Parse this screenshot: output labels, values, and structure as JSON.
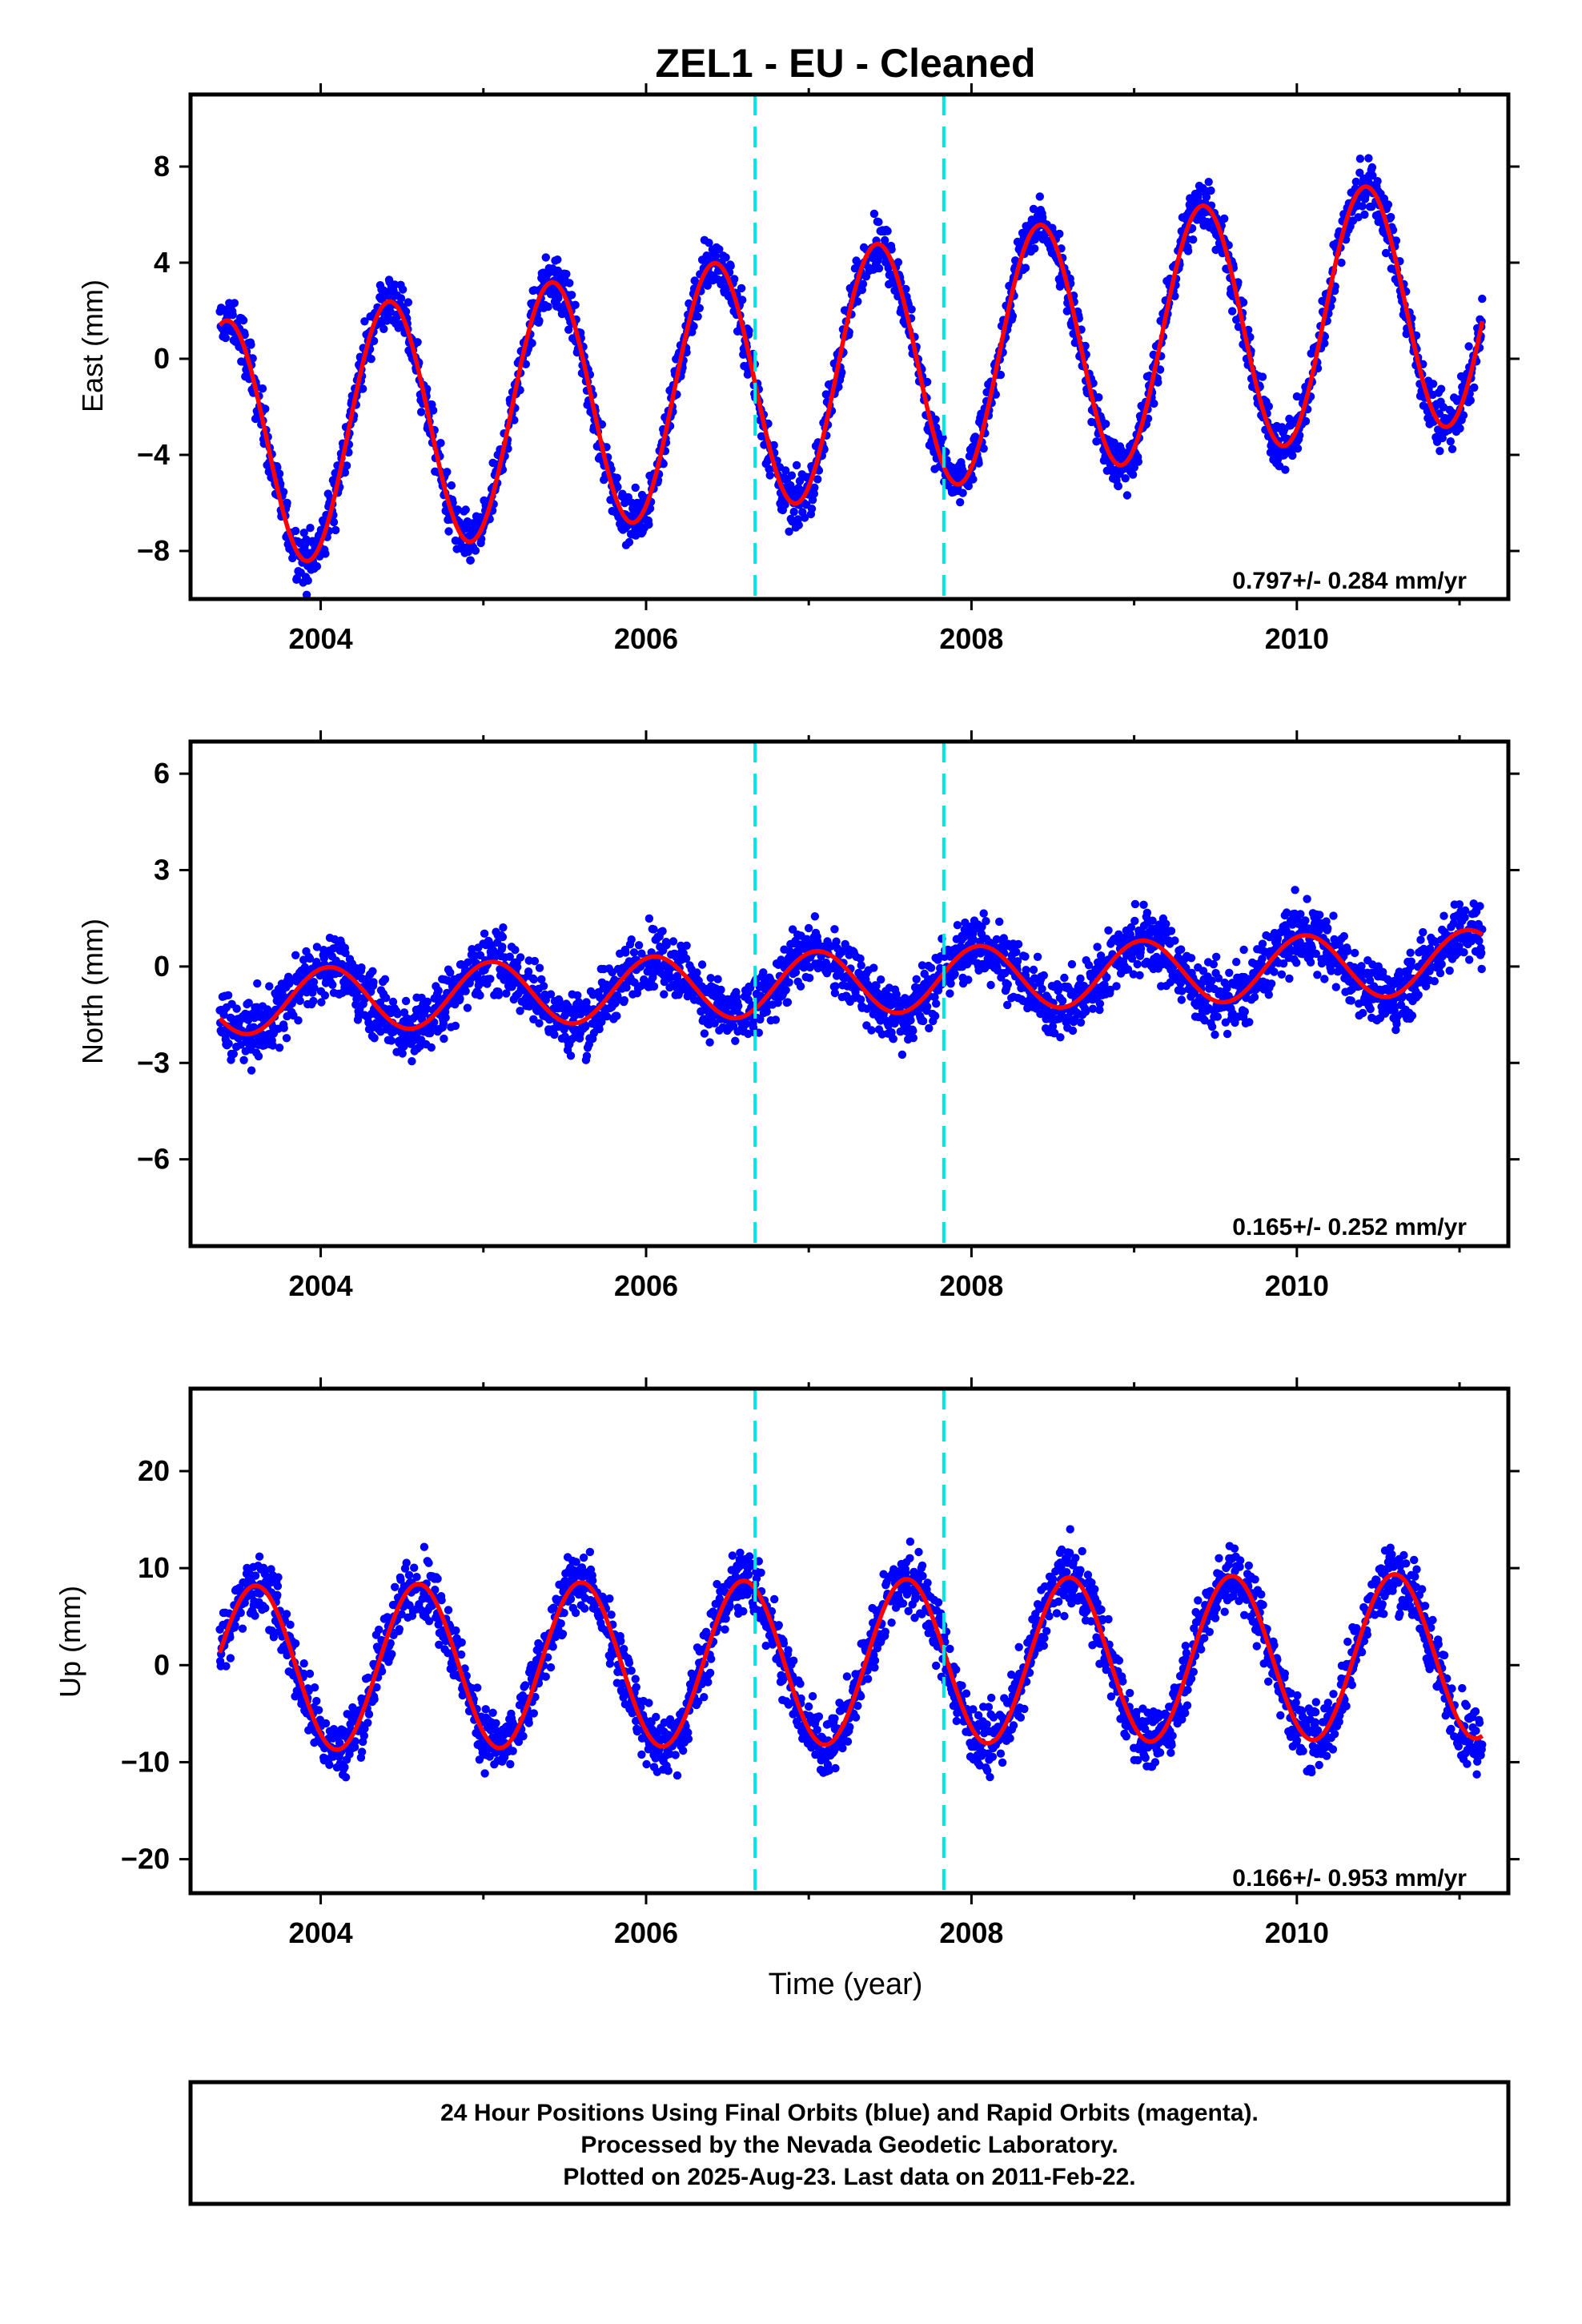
{
  "title": "ZEL1  - EU - Cleaned",
  "chart_data": [
    {
      "type": "scatter",
      "ylabel": "East (mm)",
      "xlim": [
        2003.2,
        2011.3
      ],
      "ylim": [
        -10.0,
        11.0
      ],
      "x_ticks": [
        "2004",
        "2006",
        "2008",
        "2010"
      ],
      "y_ticks": [
        -8,
        -4,
        0,
        4,
        8
      ],
      "y_tick_labels": [
        "−8",
        "−4",
        "0",
        "4",
        "8"
      ],
      "rate_label": "0.797+/- 0.284 mm/yr",
      "vertical_lines": [
        2006.67,
        2007.83
      ],
      "series": [
        {
          "name": "24 Hour Positions Using Final Orbits (blue)",
          "color": "#0000ff",
          "model": {
            "start": 2003.38,
            "end": 2011.14,
            "amp": 5.2,
            "phase_peak": 0.42,
            "offset": -0.6,
            "trend": 0.797,
            "noise": 1.3
          }
        },
        {
          "name": "model fit",
          "color": "#ff0000",
          "fit": {
            "start": 2003.38,
            "end": 2011.14,
            "amp": 5.2,
            "phase_peak": 0.42,
            "offset": -0.6,
            "trend": 0.797
          }
        }
      ]
    },
    {
      "type": "scatter",
      "ylabel": "North (mm)",
      "xlim": [
        2003.2,
        2011.3
      ],
      "ylim": [
        -8.7,
        7.0
      ],
      "x_ticks": [
        "2004",
        "2006",
        "2008",
        "2010"
      ],
      "y_ticks": [
        -6,
        -3,
        0,
        3,
        6
      ],
      "y_tick_labels": [
        "−6",
        "−3",
        "0",
        "3",
        "6"
      ],
      "rate_label": "0.165+/- 0.252 mm/yr",
      "vertical_lines": [
        2006.67,
        2007.83
      ],
      "series": [
        {
          "name": "24 Hour Positions Using Final Orbits (blue)",
          "color": "#0000ff",
          "model": {
            "start": 2003.38,
            "end": 2011.14,
            "amp": 1.0,
            "phase_peak": 0.05,
            "offset": -0.5,
            "trend": 0.165,
            "noise": 1.2
          }
        },
        {
          "name": "model fit",
          "color": "#ff0000",
          "fit": {
            "start": 2003.38,
            "end": 2011.14,
            "amp": 1.0,
            "phase_peak": 0.05,
            "offset": -0.5,
            "trend": 0.165
          }
        }
      ]
    },
    {
      "type": "scatter",
      "ylabel": "Up (mm)",
      "xlabel": "Time (year)",
      "xlim": [
        2003.2,
        2011.3
      ],
      "ylim": [
        -23.5,
        28.5
      ],
      "x_ticks": [
        "2004",
        "2006",
        "2008",
        "2010"
      ],
      "y_ticks": [
        -20,
        -10,
        0,
        10,
        20
      ],
      "y_tick_labels": [
        "−20",
        "−10",
        "0",
        "10",
        "20"
      ],
      "rate_label": "0.166+/- 0.953 mm/yr",
      "vertical_lines": [
        2006.67,
        2007.83
      ],
      "series": [
        {
          "name": "24 Hour Positions Using Final Orbits (blue)",
          "color": "#0000ff",
          "model": {
            "start": 2003.38,
            "end": 2011.14,
            "amp": 8.5,
            "phase_peak": 0.6,
            "offset": 0.3,
            "trend": 0.166,
            "noise": 4.0
          }
        },
        {
          "name": "model fit",
          "color": "#ff0000",
          "fit": {
            "start": 2003.38,
            "end": 2011.14,
            "amp": 8.5,
            "phase_peak": 0.6,
            "offset": 0.3,
            "trend": 0.166
          }
        }
      ]
    }
  ],
  "footer": {
    "line1": "24 Hour Positions Using Final Orbits (blue) and Rapid Orbits (magenta).",
    "line2": "Processed by the Nevada Geodetic Laboratory.",
    "line3": "Plotted on 2025-Aug-23. Last data on 2011-Feb-22."
  }
}
